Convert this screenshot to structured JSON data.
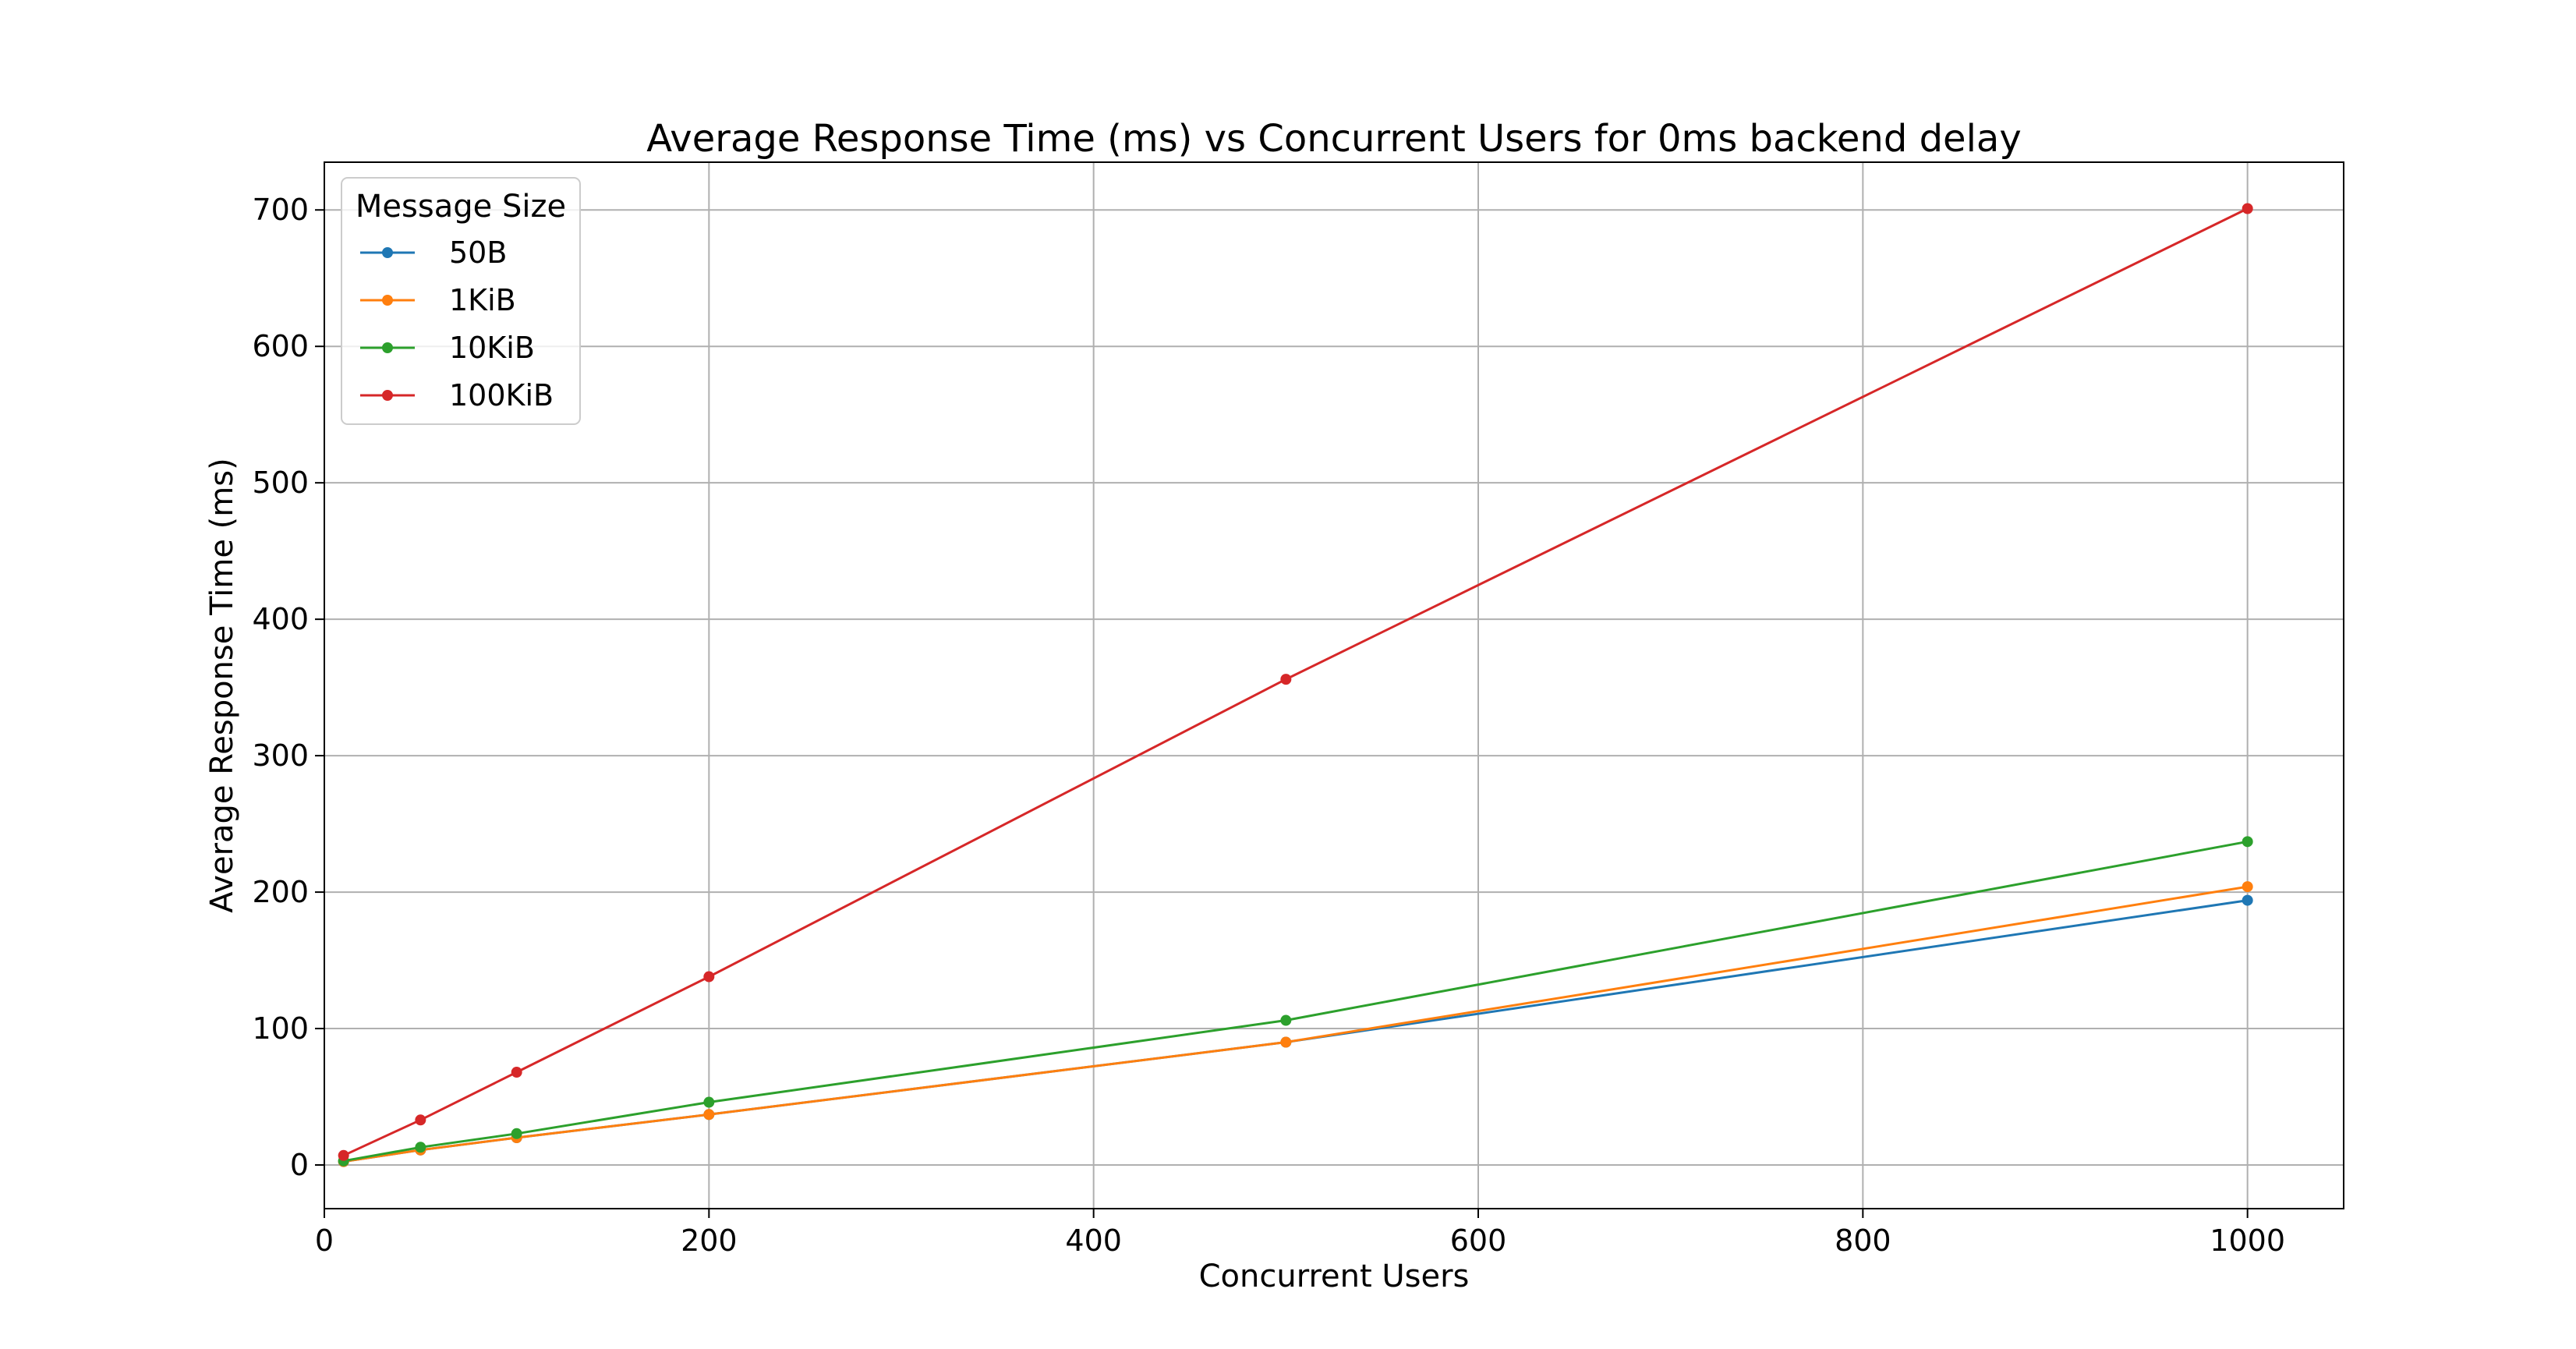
{
  "chart_data": {
    "type": "line",
    "title": "Average Response Time (ms) vs Concurrent Users for 0ms backend delay",
    "xlabel": "Concurrent Users",
    "ylabel": "Average Response Time (ms)",
    "xlim": [
      0,
      1050
    ],
    "ylim": [
      -32,
      735
    ],
    "xticks": [
      0,
      200,
      400,
      600,
      800,
      1000
    ],
    "yticks": [
      0,
      100,
      200,
      300,
      400,
      500,
      600,
      700
    ],
    "grid": true,
    "legend": {
      "title": "Message Size",
      "placement": "top-left"
    },
    "x": [
      10,
      50,
      100,
      200,
      500,
      1000
    ],
    "series": [
      {
        "name": "50B",
        "color": "#1f77b4",
        "values": [
          2.5,
          11,
          20,
          37,
          90,
          194
        ]
      },
      {
        "name": "1KiB",
        "color": "#ff7f0e",
        "values": [
          2.5,
          11,
          20,
          37,
          90,
          204
        ]
      },
      {
        "name": "10KiB",
        "color": "#2ca02c",
        "values": [
          3,
          13,
          23,
          46,
          106,
          237
        ]
      },
      {
        "name": "100KiB",
        "color": "#d62728",
        "values": [
          7,
          33,
          68,
          138,
          356,
          701
        ]
      }
    ]
  }
}
